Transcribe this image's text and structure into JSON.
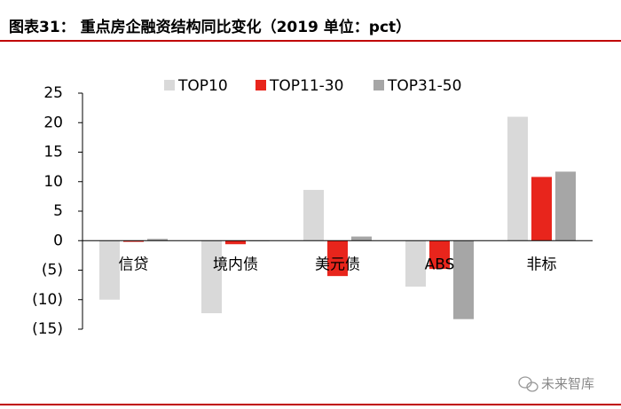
{
  "chart_data": {
    "type": "bar",
    "title": "图表31： 重点房企融资结构同比变化（2019 单位：pct）",
    "categories": [
      "信贷",
      "境内债",
      "美元债",
      "ABS",
      "非标"
    ],
    "series": [
      {
        "name": "TOP10",
        "color": "#d9d9d9",
        "values": [
          -10,
          -12.3,
          8.6,
          -7.8,
          21
        ]
      },
      {
        "name": "TOP11-30",
        "color": "#e8251c",
        "values": [
          -0.2,
          -0.6,
          -6,
          -4.8,
          10.8
        ]
      },
      {
        "name": "TOP31-50",
        "color": "#a6a6a6",
        "values": [
          0.3,
          -0.1,
          0.7,
          -13.3,
          11.7
        ]
      }
    ],
    "ylim": [
      -15,
      25
    ],
    "yticks": [
      {
        "value": -15,
        "label": "(15)"
      },
      {
        "value": -10,
        "label": "(10)"
      },
      {
        "value": -5,
        "label": "(5)"
      },
      0,
      5,
      10,
      15,
      20,
      25
    ],
    "legend": "top"
  },
  "watermark": "未来智库"
}
